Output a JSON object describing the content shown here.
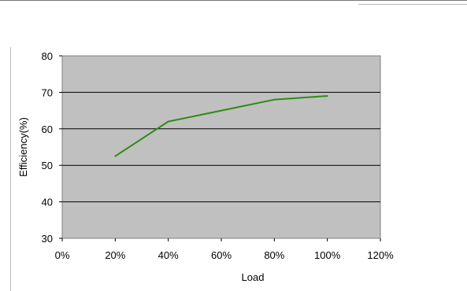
{
  "chart_data": {
    "type": "line",
    "title": "",
    "xlabel": "Load",
    "ylabel": "Efficiency(%)",
    "xlim": [
      0,
      120
    ],
    "ylim": [
      30,
      80
    ],
    "x_ticks": [
      "0%",
      "20%",
      "40%",
      "60%",
      "80%",
      "100%",
      "120%"
    ],
    "y_ticks": [
      "30",
      "40",
      "50",
      "60",
      "70",
      "80"
    ],
    "grid": "horizontal",
    "plot_background": "#c0c0c0",
    "series": [
      {
        "color": "#2e8b16",
        "x": [
          20,
          40,
          60,
          80,
          100
        ],
        "y": [
          52.5,
          62,
          65,
          68,
          69
        ]
      }
    ]
  }
}
